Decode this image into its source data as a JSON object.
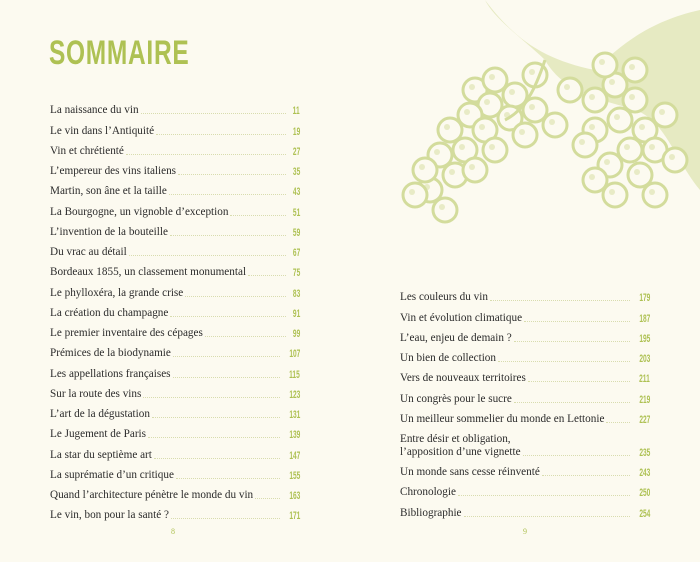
{
  "title": "SOMMAIRE",
  "left": [
    {
      "label": "La naissance du vin",
      "page": "11"
    },
    {
      "label": "Le vin dans l’Antiquité",
      "page": "19"
    },
    {
      "label": "Vin et chrétienté",
      "page": "27"
    },
    {
      "label": "L’empereur des vins italiens",
      "page": "35"
    },
    {
      "label": "Martin, son âne et la taille",
      "page": "43"
    },
    {
      "label": "La Bourgogne, un vignoble d’exception",
      "page": "51"
    },
    {
      "label": "L’invention de la bouteille",
      "page": "59"
    },
    {
      "label": "Du vrac au détail",
      "page": "67"
    },
    {
      "label": "Bordeaux 1855, un classement monumental",
      "page": "75"
    },
    {
      "label": "Le phylloxéra, la grande crise",
      "page": "83"
    },
    {
      "label": "La création du champagne",
      "page": "91"
    },
    {
      "label": "Le premier inventaire des cépages",
      "page": "99"
    },
    {
      "label": "Prémices de la biodynamie",
      "page": "107"
    },
    {
      "label": "Les appellations françaises",
      "page": "115"
    },
    {
      "label": "Sur la route des vins",
      "page": "123"
    },
    {
      "label": "L’art de la dégustation",
      "page": "131"
    },
    {
      "label": "Le Jugement de Paris",
      "page": "139"
    },
    {
      "label": "La star du septième art",
      "page": "147"
    },
    {
      "label": "La suprématie d’un critique",
      "page": "155"
    },
    {
      "label": "Quand l’architecture pénètre le monde du vin",
      "page": "163"
    },
    {
      "label": "Le vin, bon pour la santé ?",
      "page": "171"
    }
  ],
  "right": [
    {
      "label": "Les couleurs du vin",
      "page": "179"
    },
    {
      "label": "Vin et évolution climatique",
      "page": "187"
    },
    {
      "label": "L’eau, enjeu de demain ?",
      "page": "195"
    },
    {
      "label": "Un bien de collection",
      "page": "203"
    },
    {
      "label": "Vers de nouveaux territoires",
      "page": "211"
    },
    {
      "label": "Un congrès pour le sucre",
      "page": "219"
    },
    {
      "label": "Un meilleur sommelier du monde en Lettonie",
      "page": "227"
    },
    {
      "label": "Entre désir et obligation,\nl’apposition d’une vignette",
      "page": "235"
    },
    {
      "label": "Un monde sans cesse réinventé",
      "page": "243"
    },
    {
      "label": "Chronologie",
      "page": "250"
    },
    {
      "label": "Bibliographie",
      "page": "254"
    }
  ],
  "folio_left": "8",
  "folio_right": "9",
  "colors": {
    "accent": "#aec153",
    "background": "#fcfaf0",
    "illustration": "#d3dc9c"
  },
  "illustration": "grape-cluster-engraving"
}
